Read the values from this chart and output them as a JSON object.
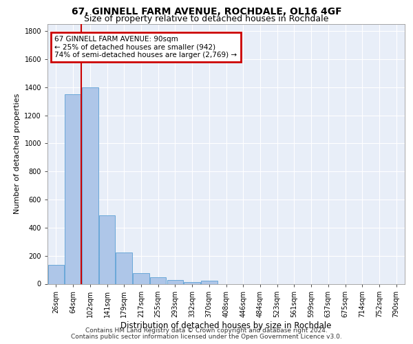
{
  "title1": "67, GINNELL FARM AVENUE, ROCHDALE, OL16 4GF",
  "title2": "Size of property relative to detached houses in Rochdale",
  "xlabel": "Distribution of detached houses by size in Rochdale",
  "ylabel": "Number of detached properties",
  "bar_values": [
    135,
    1350,
    1400,
    490,
    225,
    75,
    45,
    28,
    12,
    20,
    0,
    0,
    0,
    0,
    0,
    0,
    0,
    0,
    0,
    0,
    0
  ],
  "bar_labels": [
    "26sqm",
    "64sqm",
    "102sqm",
    "141sqm",
    "179sqm",
    "217sqm",
    "255sqm",
    "293sqm",
    "332sqm",
    "370sqm",
    "408sqm",
    "446sqm",
    "484sqm",
    "523sqm",
    "561sqm",
    "599sqm",
    "637sqm",
    "675sqm",
    "714sqm",
    "752sqm",
    "790sqm"
  ],
  "ylim": [
    0,
    1850
  ],
  "yticks": [
    0,
    200,
    400,
    600,
    800,
    1000,
    1200,
    1400,
    1600,
    1800
  ],
  "bar_color": "#aec6e8",
  "bar_edge_color": "#5a9fd4",
  "vline_color": "#cc0000",
  "annotation_title": "67 GINNELL FARM AVENUE: 90sqm",
  "annotation_line1": "← 25% of detached houses are smaller (942)",
  "annotation_line2": "74% of semi-detached houses are larger (2,769) →",
  "annotation_box_edgecolor": "#cc0000",
  "footer1": "Contains HM Land Registry data © Crown copyright and database right 2024.",
  "footer2": "Contains public sector information licensed under the Open Government Licence v3.0.",
  "bg_color": "#e8eef8",
  "grid_color": "#ffffff",
  "title1_fontsize": 10,
  "title2_fontsize": 9,
  "xlabel_fontsize": 8.5,
  "ylabel_fontsize": 8,
  "tick_fontsize": 7,
  "footer_fontsize": 6.5,
  "ann_fontsize": 7.5
}
